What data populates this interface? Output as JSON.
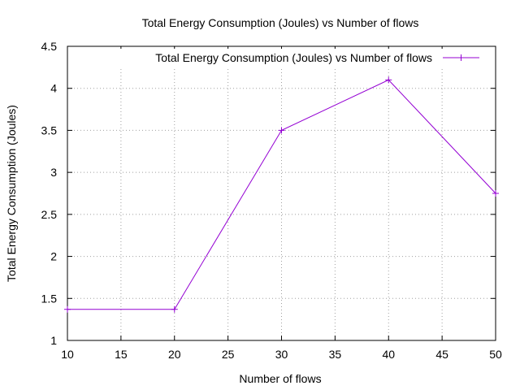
{
  "chart_data": {
    "type": "line",
    "title": "Total Energy Consumption (Joules) vs Number of flows",
    "xlabel": "Number of flows",
    "ylabel": "Total Energy Consumption (Joules)",
    "xlim": [
      10,
      50
    ],
    "ylim": [
      1,
      4.5
    ],
    "xticks": [
      10,
      15,
      20,
      25,
      30,
      35,
      40,
      45,
      50
    ],
    "yticks": [
      1,
      1.5,
      2,
      2.5,
      3,
      3.5,
      4,
      4.5
    ],
    "xtick_labels": [
      "10",
      "15",
      "20",
      "25",
      "30",
      "35",
      "40",
      "45",
      "50"
    ],
    "ytick_labels": [
      "1",
      "1.5",
      "2",
      "2.5",
      "3",
      "3.5",
      "4",
      "4.5"
    ],
    "grid": true,
    "legend_position": "top-right",
    "series": [
      {
        "name": "Total Energy Consumption (Joules) vs Number of flows",
        "color": "#9400d3",
        "marker": "plus",
        "x": [
          10,
          20,
          30,
          40,
          50
        ],
        "y": [
          1.37,
          1.37,
          3.5,
          4.1,
          2.75
        ]
      }
    ]
  }
}
